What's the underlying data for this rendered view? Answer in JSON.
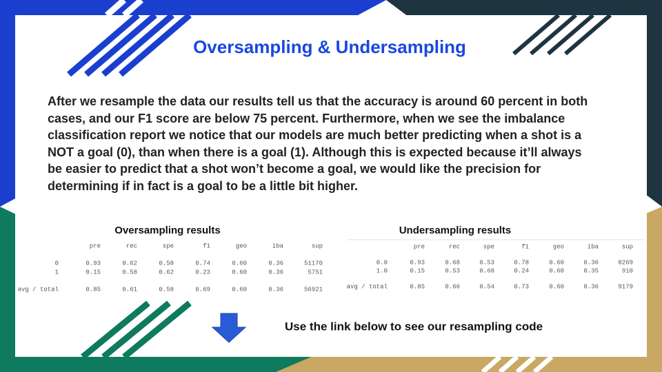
{
  "title": "Oversampling & Undersampling",
  "body": "After we resample the data our results tell us that the accuracy is around 60 percent in both cases, and our F1 score are below 75 percent. Furthermore, when we see the imbalance classification report we notice that our models are much better predicting when a shot is a NOT a goal (0), than when there is a goal (1). Although this is expected because it’ll always be easier to predict that a shot won’t become a goal, we would like the precision for determining if in fact is a goal to be a little bit higher.",
  "tables": [
    {
      "title": "Oversampling results",
      "columns": [
        "pre",
        "rec",
        "spe",
        "f1",
        "geo",
        "iba",
        "sup"
      ],
      "rows": [
        {
          "label": "0",
          "cells": [
            "0.93",
            "0.62",
            "0.58",
            "0.74",
            "0.60",
            "0.36",
            "51170"
          ]
        },
        {
          "label": "1",
          "cells": [
            "0.15",
            "0.58",
            "0.62",
            "0.23",
            "0.60",
            "0.36",
            "5751"
          ]
        },
        {
          "label": "avg / total",
          "cells": [
            "0.85",
            "0.61",
            "0.58",
            "0.69",
            "0.60",
            "0.36",
            "56921"
          ]
        }
      ]
    },
    {
      "title": "Undersampling results",
      "columns": [
        "pre",
        "rec",
        "spe",
        "f1",
        "geo",
        "iba",
        "sup"
      ],
      "rows": [
        {
          "label": "0.0",
          "cells": [
            "0.93",
            "0.68",
            "0.53",
            "0.78",
            "0.60",
            "0.36",
            "8269"
          ]
        },
        {
          "label": "1.0",
          "cells": [
            "0.15",
            "0.53",
            "0.68",
            "0.24",
            "0.60",
            "0.35",
            "910"
          ]
        },
        {
          "label": "avg / total",
          "cells": [
            "0.85",
            "0.66",
            "0.54",
            "0.73",
            "0.60",
            "0.36",
            "9179"
          ]
        }
      ]
    }
  ],
  "footer": "Use the link below to see our resampling code"
}
